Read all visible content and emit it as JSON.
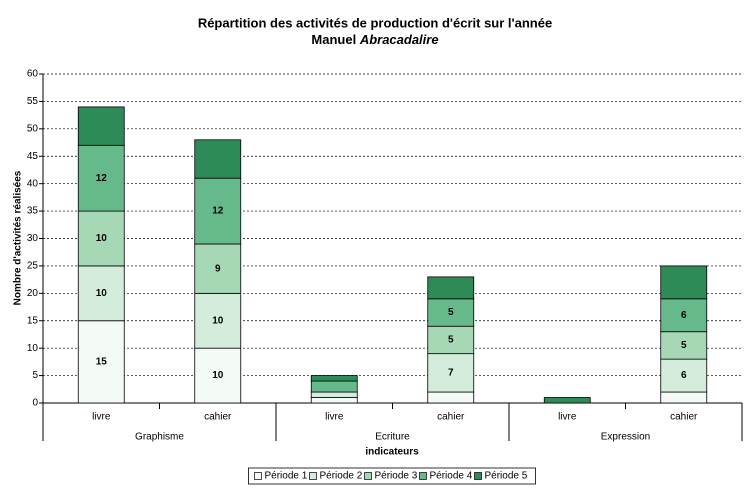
{
  "chart_data": {
    "type": "stacked_bar",
    "title": "Répartition des activités de production d'écrit sur l'année",
    "subtitle": [
      "Manuel ",
      "Abracadalire"
    ],
    "x_label": "indicateurs",
    "y_label": "Nombre d'activités réalisées",
    "categories": [
      "livre",
      "cahier",
      "livre",
      "cahier",
      "livre",
      "cahier"
    ],
    "category_groups": [
      "Graphisme",
      "Ecriture",
      "Expression"
    ],
    "ylim": [
      0,
      60
    ],
    "yticks": [
      0,
      5,
      10,
      15,
      20,
      25,
      30,
      35,
      40,
      45,
      50,
      55,
      60
    ],
    "grid": true,
    "legend": "bottom",
    "series": [
      {
        "name": "Période 1",
        "color": "#f4faf6",
        "values": [
          15,
          10,
          1,
          2,
          0,
          2
        ],
        "value_labels": [
          "15",
          "10",
          null,
          null,
          null,
          null
        ]
      },
      {
        "name": "Période 2",
        "color": "#d3ecdb",
        "values": [
          10,
          10,
          1,
          7,
          0,
          6
        ],
        "value_labels": [
          "10",
          "10",
          null,
          "7",
          null,
          "6"
        ]
      },
      {
        "name": "Période 3",
        "color": "#a6d8b6",
        "values": [
          10,
          9,
          0,
          5,
          0,
          5
        ],
        "value_labels": [
          "10",
          "9",
          null,
          "5",
          null,
          "5"
        ]
      },
      {
        "name": "Période 4",
        "color": "#66b98a",
        "values": [
          12,
          12,
          2,
          5,
          0,
          6
        ],
        "value_labels": [
          "12",
          "12",
          null,
          "5",
          null,
          "6"
        ]
      },
      {
        "name": "Période 5",
        "color": "#2e8b57",
        "values": [
          7,
          7,
          1,
          4,
          1,
          6
        ],
        "value_labels": [
          null,
          null,
          null,
          null,
          null,
          null
        ]
      }
    ]
  }
}
